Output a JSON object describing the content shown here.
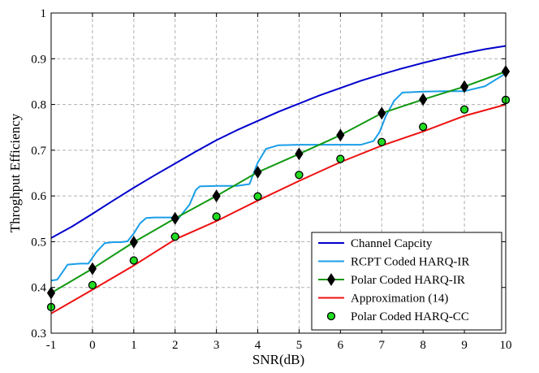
{
  "chart_data": {
    "type": "line",
    "title": "",
    "xlabel": "SNR(dB)",
    "ylabel": "Throghput Efficiency",
    "xlim": [
      -1,
      10
    ],
    "ylim": [
      0.3,
      1
    ],
    "xticks": [
      -1,
      0,
      1,
      2,
      3,
      4,
      5,
      6,
      7,
      8,
      9,
      10
    ],
    "yticks": [
      0.3,
      0.4,
      0.5,
      0.6,
      0.7,
      0.8,
      0.9,
      1
    ],
    "xtick_labels": [
      "-1",
      "0",
      "1",
      "2",
      "3",
      "4",
      "5",
      "6",
      "7",
      "8",
      "9",
      "10"
    ],
    "ytick_labels": [
      "0.3",
      "0.4",
      "0.5",
      "0.6",
      "0.7",
      "0.8",
      "0.9",
      "1"
    ],
    "grid": true,
    "legend_position": "bottom-right",
    "series": [
      {
        "name": "Channel Capcity",
        "color": "#0000cc",
        "style": "line",
        "x": [
          -1,
          -0.5,
          0,
          0.5,
          1,
          1.5,
          2,
          2.5,
          3,
          3.5,
          4,
          4.5,
          5,
          5.5,
          6,
          6.5,
          7,
          7.5,
          8,
          8.5,
          9,
          9.5,
          10
        ],
        "y": [
          0.508,
          0.533,
          0.561,
          0.59,
          0.618,
          0.645,
          0.671,
          0.697,
          0.722,
          0.744,
          0.764,
          0.784,
          0.802,
          0.82,
          0.836,
          0.852,
          0.866,
          0.879,
          0.891,
          0.902,
          0.912,
          0.921,
          0.928
        ]
      },
      {
        "name": "RCPT Coded HARQ-IR",
        "color": "#1a9ee8",
        "style": "line",
        "x": [
          -1,
          -0.85,
          -0.6,
          -0.3,
          -0.1,
          0.1,
          0.3,
          0.5,
          0.7,
          0.85,
          1,
          1.15,
          1.3,
          1.5,
          1.8,
          2.1,
          2.35,
          2.5,
          2.6,
          3,
          3.5,
          3.8,
          4,
          4.2,
          4.5,
          5,
          5.5,
          6,
          6.5,
          6.8,
          6.95,
          7.1,
          7.3,
          7.5,
          8,
          8.5,
          9,
          9.5,
          10
        ],
        "y": [
          0.415,
          0.417,
          0.45,
          0.452,
          0.452,
          0.478,
          0.497,
          0.499,
          0.499,
          0.501,
          0.518,
          0.54,
          0.552,
          0.553,
          0.553,
          0.553,
          0.581,
          0.613,
          0.621,
          0.622,
          0.622,
          0.626,
          0.673,
          0.703,
          0.711,
          0.712,
          0.712,
          0.712,
          0.712,
          0.72,
          0.74,
          0.775,
          0.808,
          0.826,
          0.828,
          0.829,
          0.829,
          0.84,
          0.868
        ]
      },
      {
        "name": "Polar Coded HARQ-IR",
        "color": "#119911",
        "style": "line+diamond",
        "x": [
          -1,
          0,
          1,
          2,
          3,
          4,
          5,
          6,
          7,
          8,
          9,
          10
        ],
        "y": [
          0.388,
          0.441,
          0.499,
          0.551,
          0.6,
          0.652,
          0.692,
          0.733,
          0.781,
          0.811,
          0.839,
          0.872
        ]
      },
      {
        "name": "Approximation (14)",
        "color": "#ee1111",
        "style": "line",
        "x": [
          -1,
          0,
          1,
          2,
          3,
          4,
          5,
          6,
          7,
          8,
          9,
          10
        ],
        "y": [
          0.343,
          0.395,
          0.448,
          0.505,
          0.545,
          0.59,
          0.633,
          0.674,
          0.71,
          0.741,
          0.775,
          0.8
        ]
      },
      {
        "name": "Polar Coded HARQ-CC",
        "color": "#22dd22",
        "style": "circle",
        "x": [
          -1,
          0,
          1,
          2,
          3,
          4,
          5,
          6,
          7,
          8,
          9,
          10
        ],
        "y": [
          0.357,
          0.405,
          0.459,
          0.511,
          0.555,
          0.599,
          0.646,
          0.681,
          0.718,
          0.751,
          0.789,
          0.81
        ]
      }
    ]
  }
}
